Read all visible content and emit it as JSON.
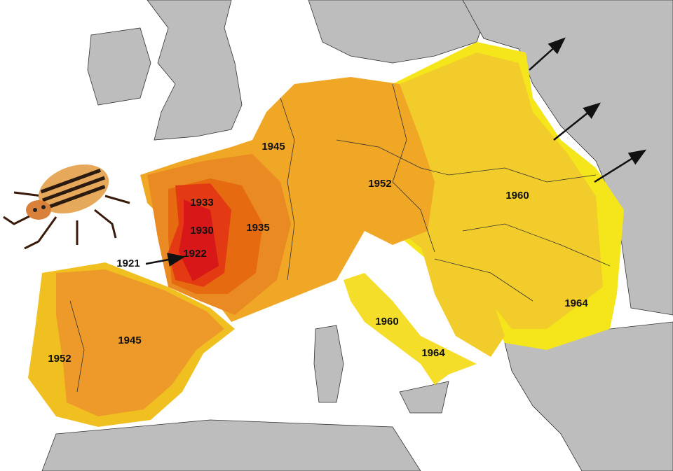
{
  "labels": [
    "1945",
    "1952",
    "1960",
    "1933",
    "1930",
    "1935",
    "1922",
    "1921",
    "1960",
    "1964",
    "1964",
    "1945",
    "1952"
  ]
}
